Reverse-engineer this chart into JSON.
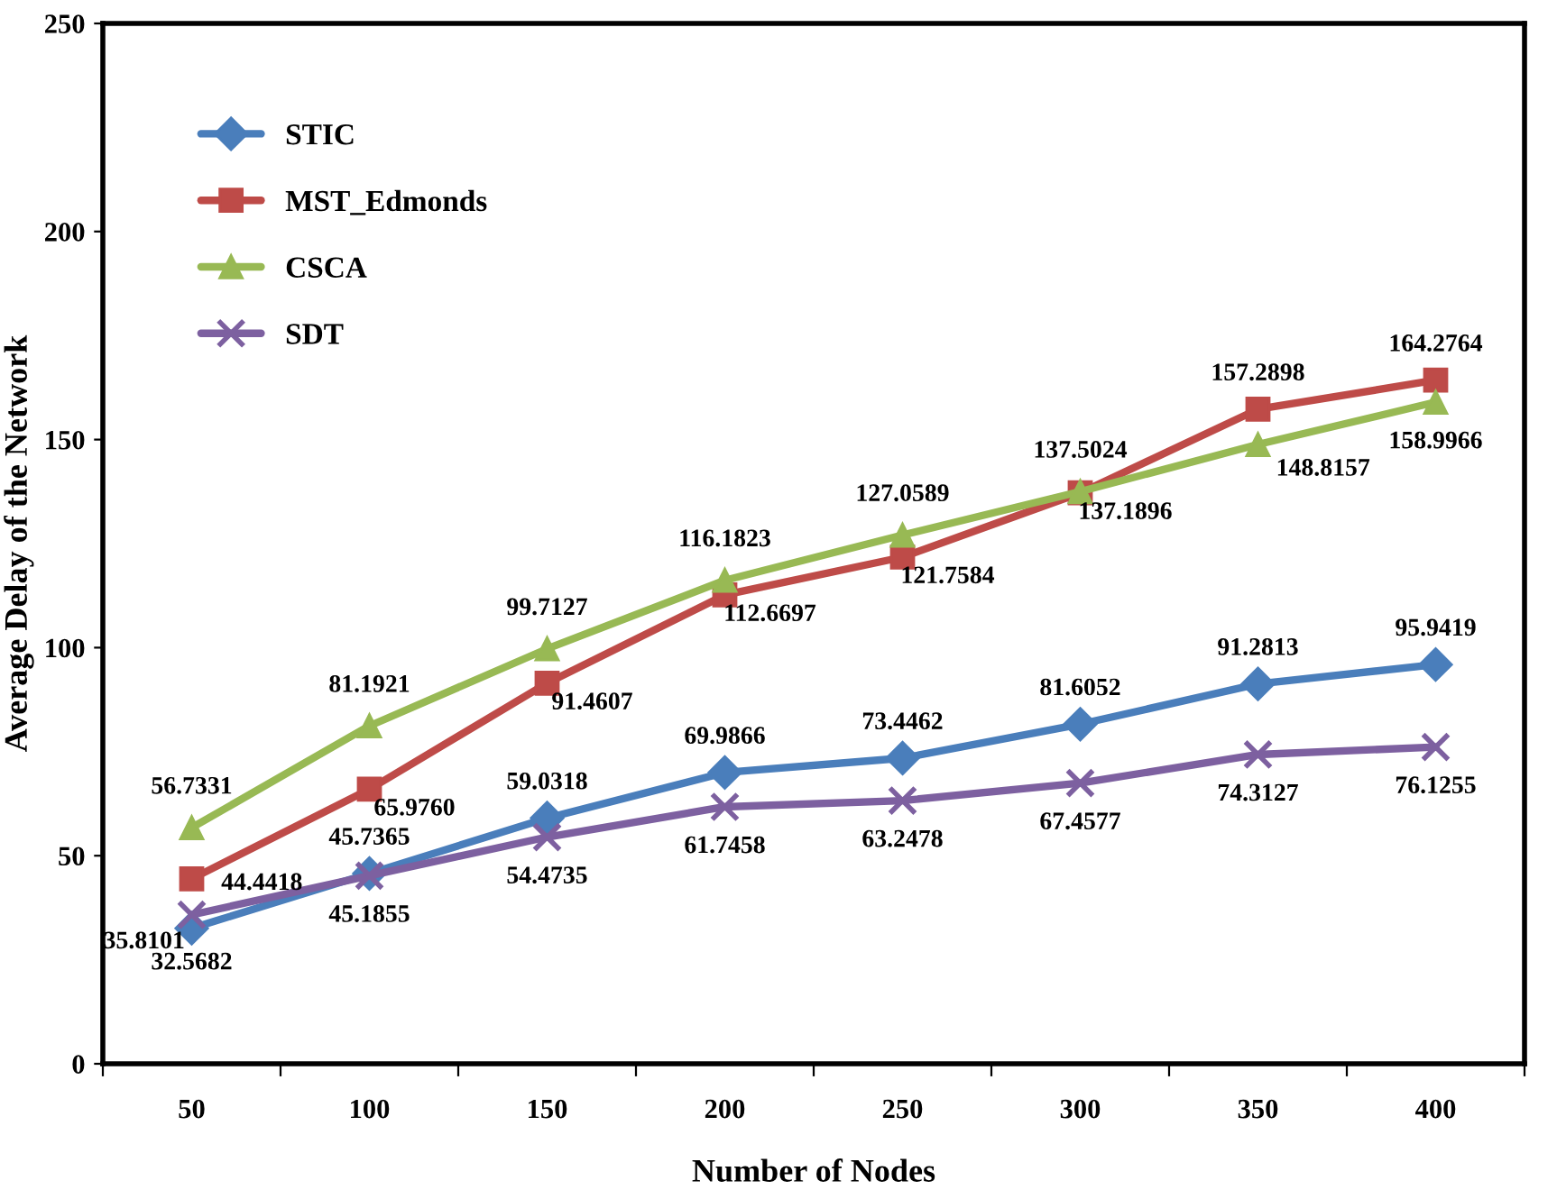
{
  "chart_data": {
    "type": "line",
    "xlabel": "Number of Nodes",
    "ylabel": "Average Delay of the Network",
    "categories": [
      "50",
      "100",
      "150",
      "200",
      "250",
      "300",
      "350",
      "400"
    ],
    "ylim": [
      0,
      250
    ],
    "yticks": [
      0,
      50,
      100,
      150,
      200,
      250
    ],
    "grid": false,
    "legend": "top left",
    "line_style": "solid",
    "series": [
      {
        "name": "STIC",
        "color": "#4a7ebb",
        "marker": "diamond",
        "values": [
          32.5682,
          45.7365,
          59.0318,
          69.9866,
          73.4462,
          81.6052,
          91.2813,
          95.9419
        ],
        "value_labels": [
          "32.5682",
          "45.7365",
          "59.0318",
          "69.9866",
          "73.4462",
          "81.6052",
          "91.2813",
          "95.9419"
        ]
      },
      {
        "name": "MST_Edmonds",
        "color": "#be4b48",
        "marker": "square",
        "values": [
          44.4418,
          65.976,
          91.4607,
          112.6697,
          121.7584,
          137.1896,
          157.2898,
          164.2764
        ],
        "value_labels": [
          "44.4418",
          "65.9760",
          "91.4607",
          "112.6697",
          "121.7584",
          "137.1896",
          "157.2898",
          "164.2764"
        ]
      },
      {
        "name": "CSCA",
        "color": "#98b954",
        "marker": "triangle",
        "values": [
          56.7331,
          81.1921,
          99.7127,
          116.1823,
          127.0589,
          137.5024,
          148.8157,
          158.9966
        ],
        "value_labels": [
          "56.7331",
          "81.1921",
          "99.7127",
          "116.1823",
          "127.0589",
          "137.5024",
          "148.8157",
          "158.9966"
        ]
      },
      {
        "name": "SDT",
        "color": "#7d60a0",
        "marker": "cross",
        "values": [
          35.8101,
          45.1855,
          54.4735,
          61.7458,
          63.2478,
          67.4577,
          74.3127,
          76.1255
        ],
        "value_labels": [
          "35.8101",
          "45.1855",
          "54.4735",
          "61.7458",
          "63.2478",
          "67.4577",
          "74.3127",
          "76.1255"
        ]
      }
    ]
  }
}
